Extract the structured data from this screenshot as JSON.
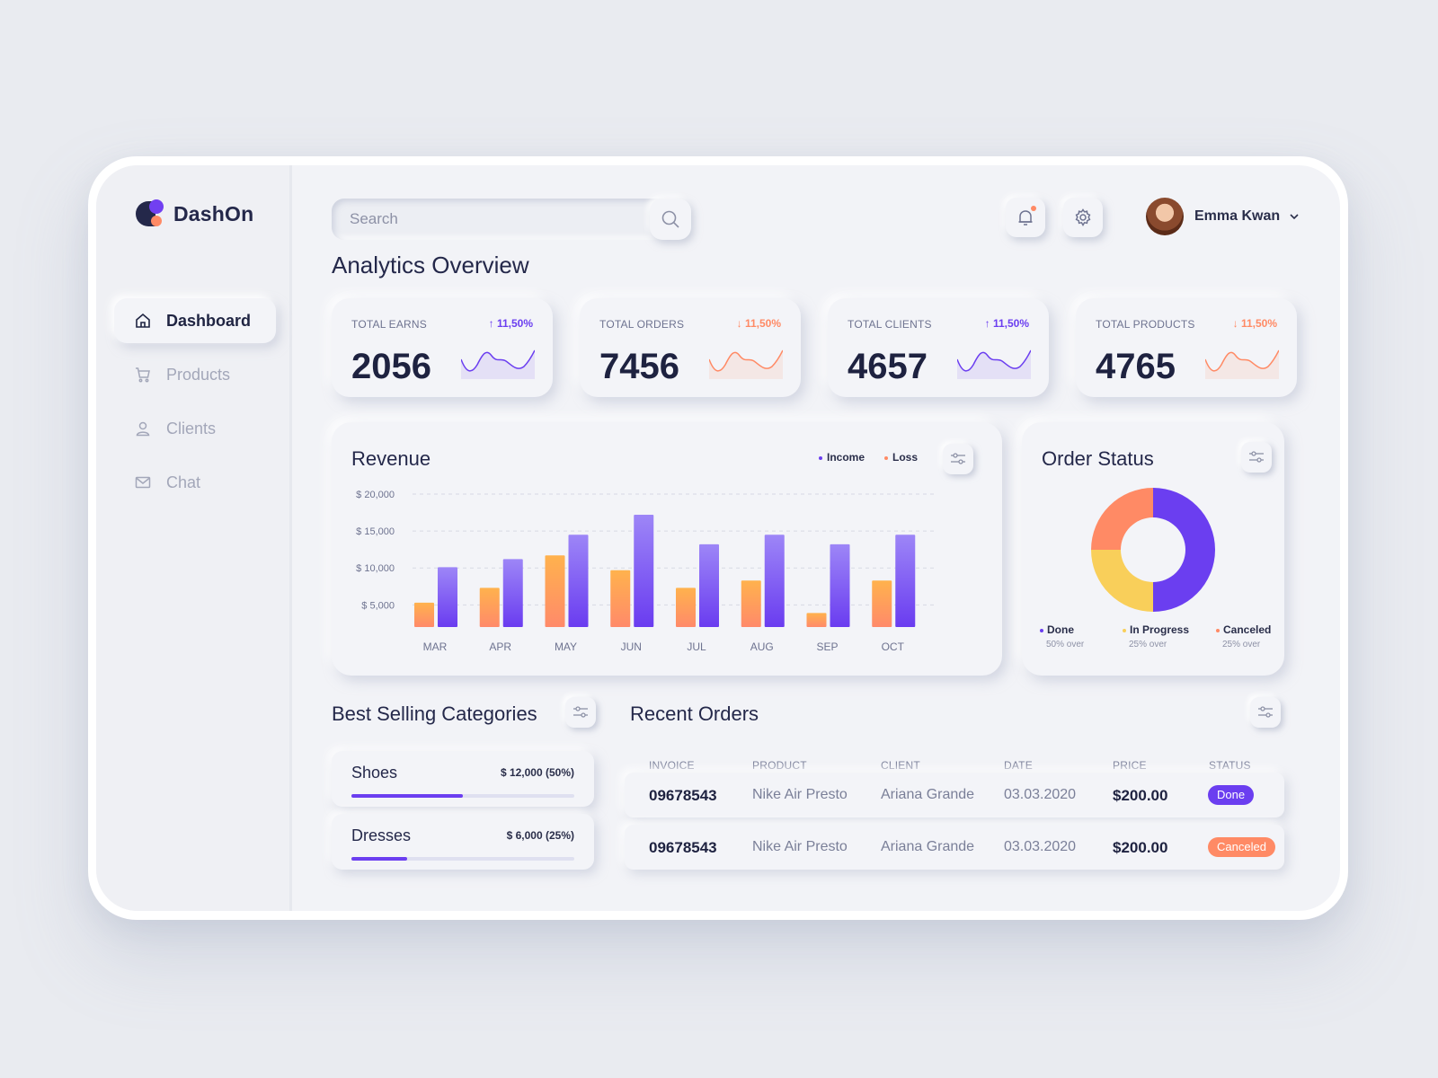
{
  "app": {
    "name": "DashOn"
  },
  "sidebar": {
    "items": [
      {
        "label": "Dashboard",
        "icon": "home-icon",
        "active": true
      },
      {
        "label": "Products",
        "icon": "cart-icon",
        "active": false
      },
      {
        "label": "Clients",
        "icon": "user-icon",
        "active": false
      },
      {
        "label": "Chat",
        "icon": "mail-icon",
        "active": false
      }
    ]
  },
  "header": {
    "search_placeholder": "Search",
    "user_name": "Emma Kwan"
  },
  "page_title": "Analytics Overview",
  "stats": [
    {
      "label": "TOTAL EARNS",
      "value": "2056",
      "change": "↑ 11,50%",
      "trend": "up"
    },
    {
      "label": "TOTAL ORDERS",
      "value": "7456",
      "change": "↓ 11,50%",
      "trend": "down"
    },
    {
      "label": "TOTAL CLIENTS",
      "value": "4657",
      "change": "↑ 11,50%",
      "trend": "up"
    },
    {
      "label": "TOTAL PRODUCTS",
      "value": "4765",
      "change": "↓ 11,50%",
      "trend": "down"
    }
  ],
  "revenue": {
    "title": "Revenue",
    "legend_income": "Income",
    "legend_loss": "Loss"
  },
  "chart_data": [
    {
      "type": "bar",
      "title": "Revenue",
      "categories": [
        "MAR",
        "APR",
        "MAY",
        "JUN",
        "JUL",
        "AUG",
        "SEP",
        "OCT"
      ],
      "series": [
        {
          "name": "Loss",
          "color": "#ffa05a",
          "values": [
            5300,
            7300,
            11700,
            9700,
            7300,
            8300,
            3900,
            8300
          ]
        },
        {
          "name": "Income",
          "color": "#7a4ff2",
          "values": [
            10100,
            11200,
            14500,
            17200,
            13200,
            14500,
            13200,
            14500
          ]
        }
      ],
      "y_ticks": [
        "$ 20,000",
        "$ 15,000",
        "$ 10,000",
        "$ 5,000"
      ],
      "ylim": [
        2000,
        20000
      ],
      "grid": true,
      "legend": "top-right"
    },
    {
      "type": "pie",
      "title": "Order Status",
      "labels": [
        "Done",
        "In Progress",
        "Canceled"
      ],
      "values": [
        50,
        25,
        25
      ],
      "colors": [
        "#6b3ef0",
        "#f9cf5a",
        "#ff8a65"
      ]
    }
  ],
  "order_status": {
    "title": "Order Status",
    "items": [
      {
        "label": "Done",
        "sub": "50% over",
        "color": "#6b3ef0"
      },
      {
        "label": "In Progress",
        "sub": "25% over",
        "color": "#f9cf5a"
      },
      {
        "label": "Canceled",
        "sub": "25% over",
        "color": "#ff8a65"
      }
    ]
  },
  "best_selling": {
    "title": "Best Selling Categories",
    "items": [
      {
        "name": "Shoes",
        "amount": "$ 12,000 (50%)",
        "percent": 50
      },
      {
        "name": "Dresses",
        "amount": "$ 6,000 (25%)",
        "percent": 25
      }
    ]
  },
  "recent_orders": {
    "title": "Recent Orders",
    "columns": [
      "INVOICE",
      "PRODUCT NAME",
      "CLIENT",
      "DATE",
      "PRICE",
      "STATUS"
    ],
    "rows": [
      {
        "invoice": "09678543",
        "product": "Nike Air Presto",
        "client": "Ariana Grande",
        "date": "03.03.2020",
        "price": "$200.00",
        "status": "Done"
      },
      {
        "invoice": "09678543",
        "product": "Nike Air Presto",
        "client": "Ariana Grande",
        "date": "03.03.2020",
        "price": "$200.00",
        "status": "Canceled"
      }
    ]
  },
  "colors": {
    "accent": "#6b3ef0",
    "warning": "#ff8a65",
    "yellow": "#f9cf5a"
  }
}
